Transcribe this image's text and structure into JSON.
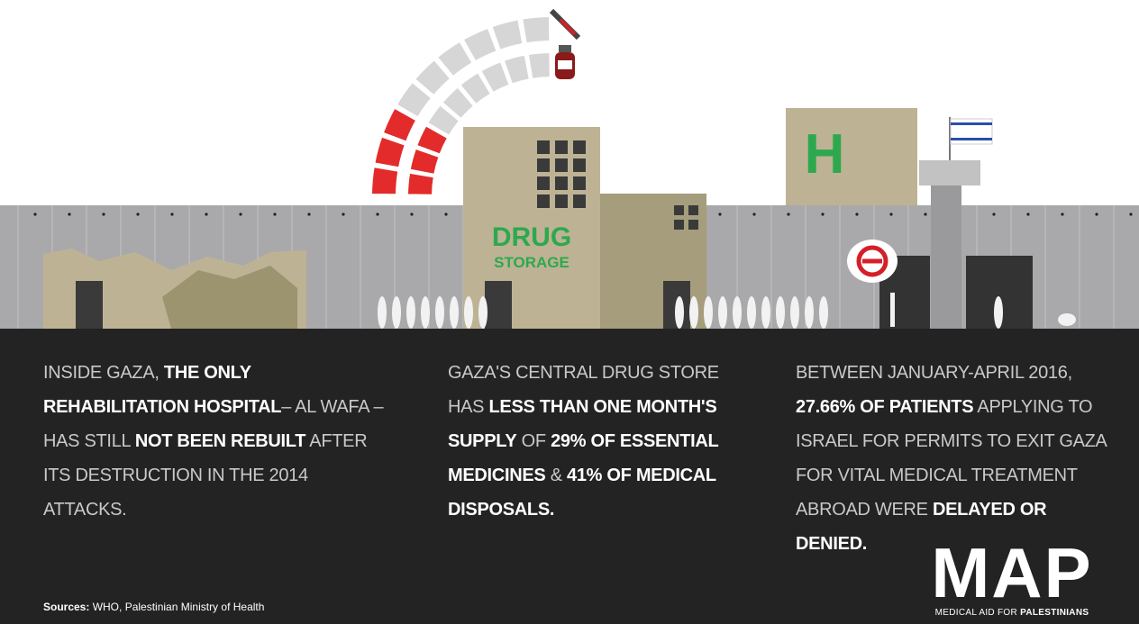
{
  "illustration": {
    "drug_label": [
      "DRUG",
      "STORAGE"
    ],
    "hospital_letter": "H"
  },
  "columns": [
    [
      {
        "text": "Inside Gaza, ",
        "bold": false
      },
      {
        "text": "the only rehabilitation hospital",
        "bold": true
      },
      {
        "text": "– Al Wafa – has still ",
        "bold": false
      },
      {
        "text": "not been rebuilt",
        "bold": true
      },
      {
        "text": " after its destruction in the 2014 attacks.",
        "bold": false
      }
    ],
    [
      {
        "text": "Gaza's central drug store has ",
        "bold": false
      },
      {
        "text": "less than one month's supply",
        "bold": true
      },
      {
        "text": " of ",
        "bold": false
      },
      {
        "text": "29% of essential medicines",
        "bold": true
      },
      {
        "text": " & ",
        "bold": false
      },
      {
        "text": "41% of medical disposals.",
        "bold": true
      }
    ],
    [
      {
        "text": "Between January-April 2016, ",
        "bold": false
      },
      {
        "text": "27.66% of patients",
        "bold": true
      },
      {
        "text": " applying to Israel for permits to exit Gaza for vital medical treatment abroad were ",
        "bold": false
      },
      {
        "text": "delayed or denied.",
        "bold": true
      }
    ]
  ],
  "sources": {
    "label": "Sources:",
    "text": " WHO, Palestinian Ministry of Health"
  },
  "logo": {
    "name": "MAP",
    "tagline": "MEDICAL AID FOR ",
    "tagline_bold": "PALESTINIANS"
  }
}
